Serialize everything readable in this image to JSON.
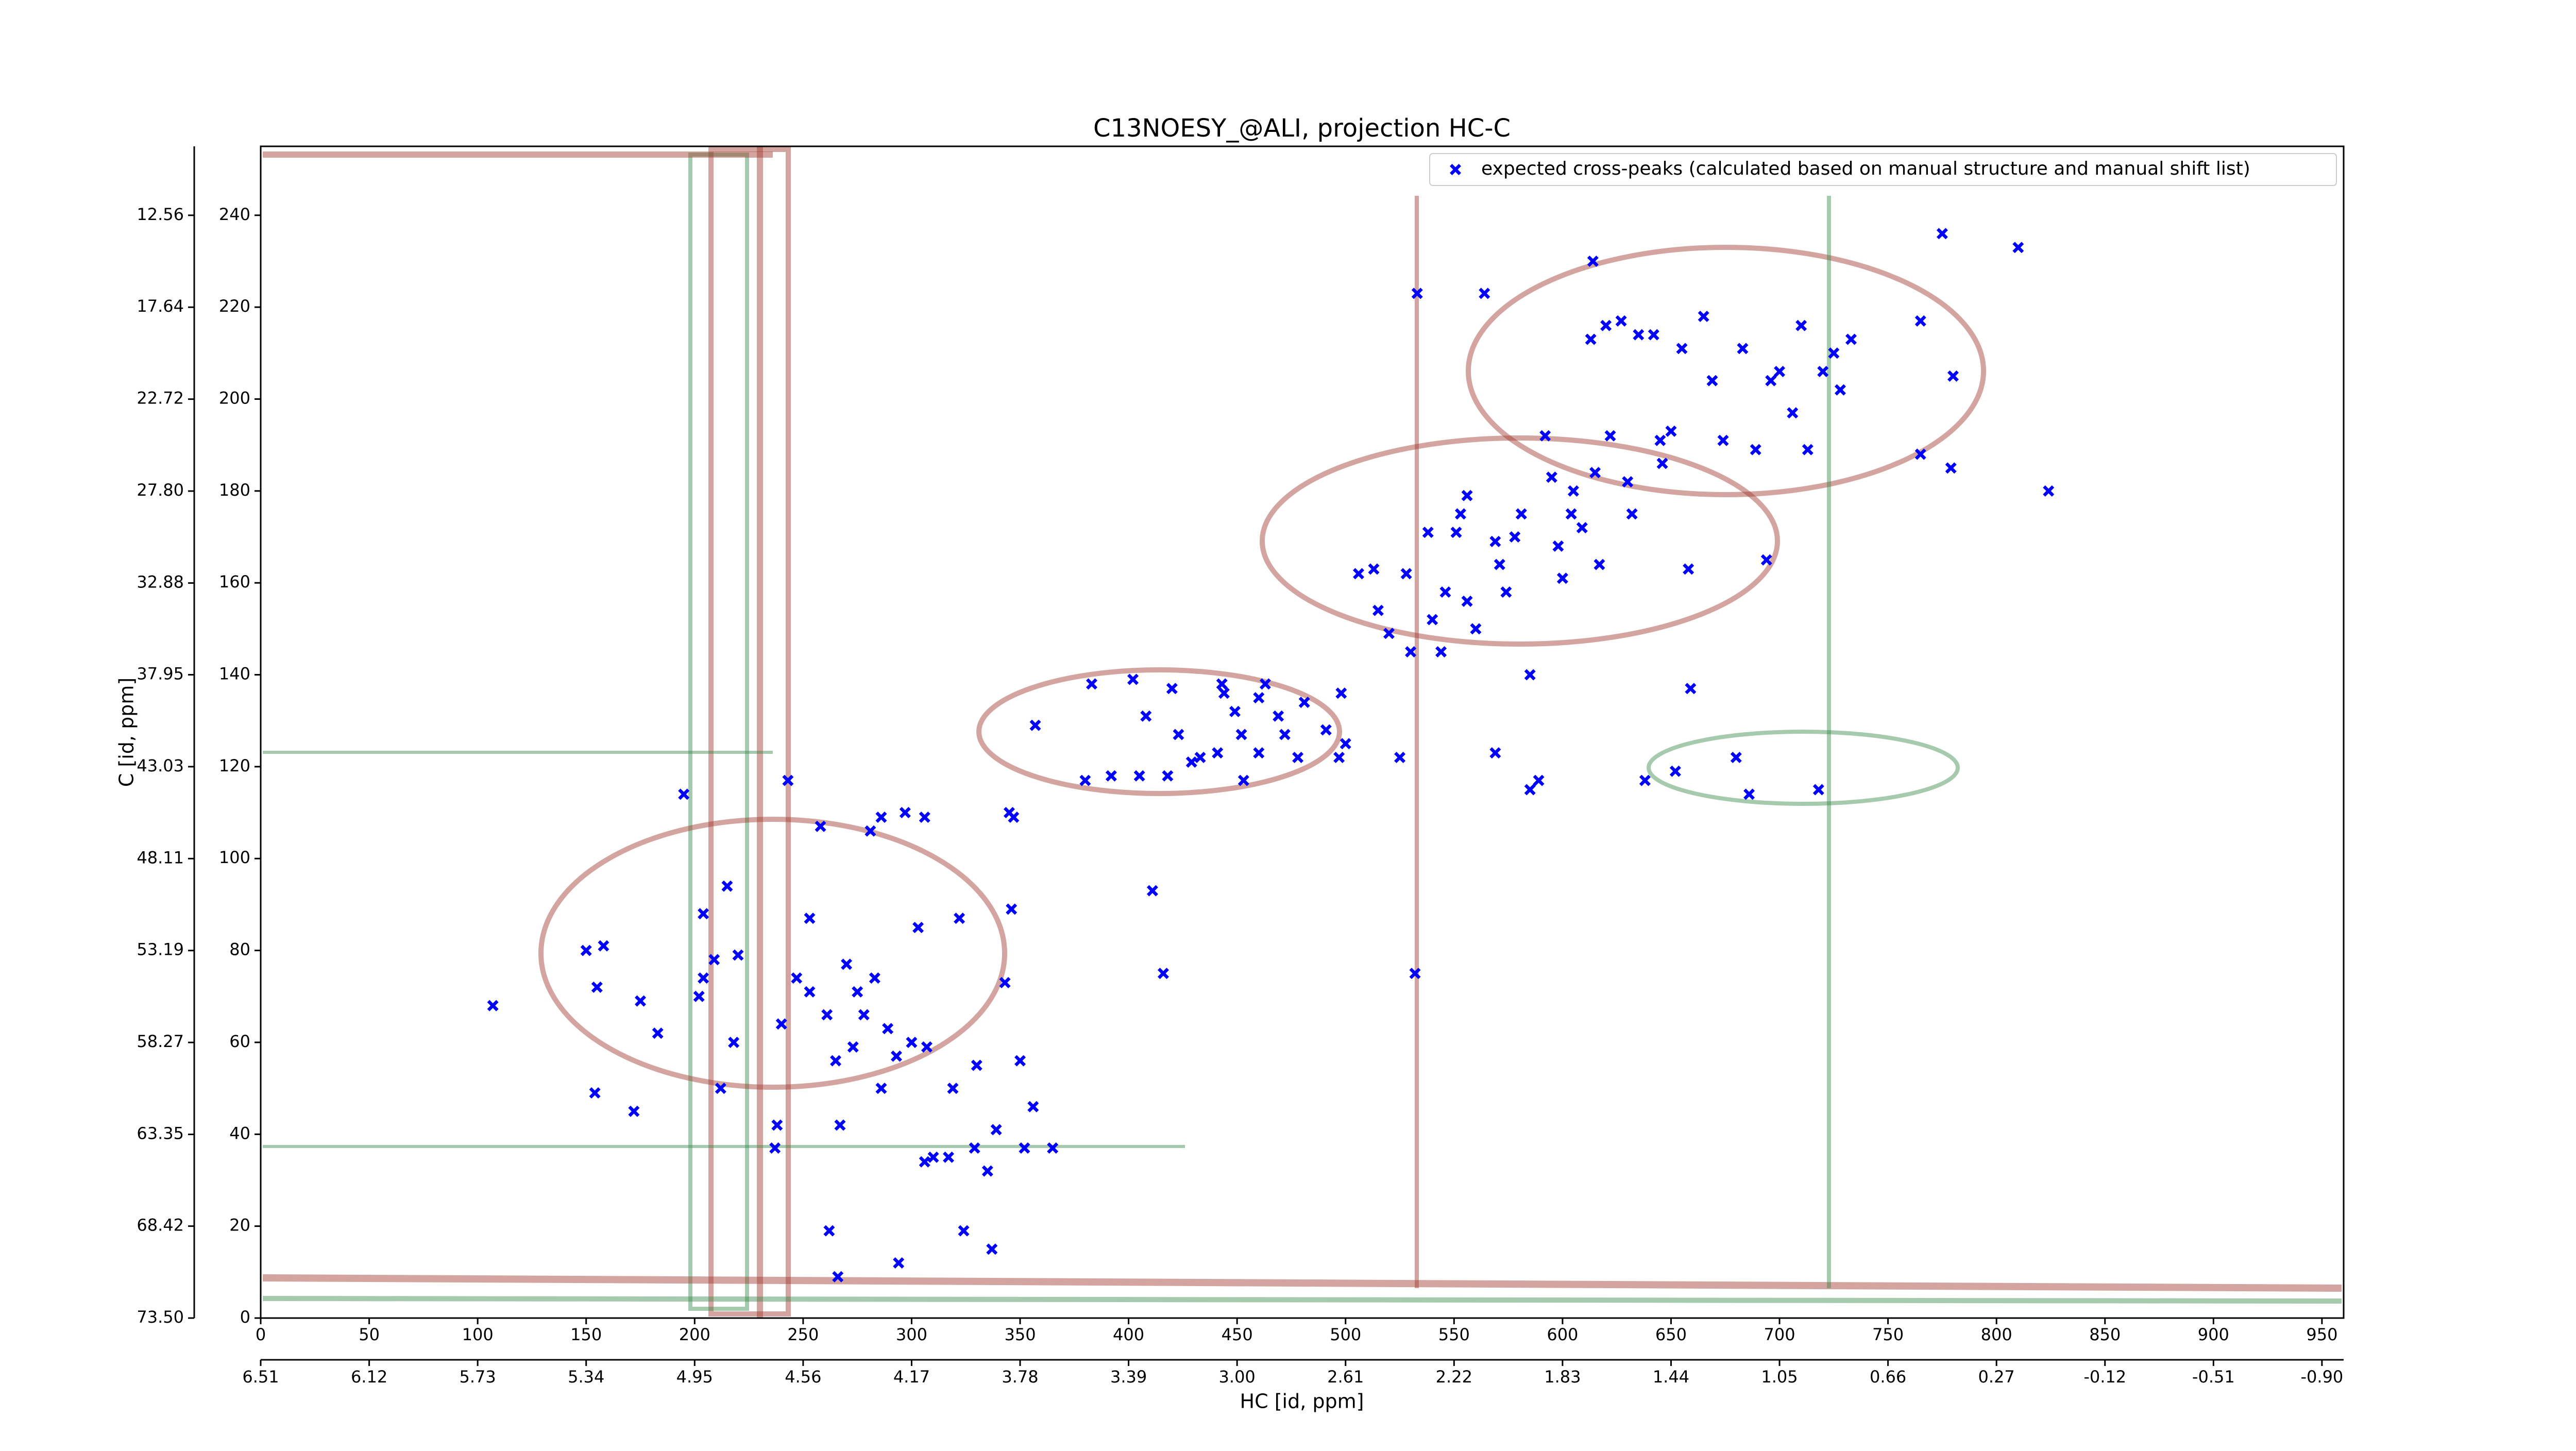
{
  "chart_data": {
    "type": "scatter",
    "title": "C13NOESY_@ALI, projection HC-C",
    "xlabel": "HC [id, ppm]",
    "ylabel": "C [id, ppm]",
    "xlim": [
      0,
      960
    ],
    "ylim": [
      0,
      255
    ],
    "xticks": [
      0,
      50,
      100,
      150,
      200,
      250,
      300,
      350,
      400,
      450,
      500,
      550,
      600,
      650,
      700,
      750,
      800,
      850,
      900,
      950
    ],
    "yticks": [
      0,
      20,
      40,
      60,
      80,
      100,
      120,
      140,
      160,
      180,
      200,
      220,
      240
    ],
    "x2lim": [
      6.51,
      -0.978
    ],
    "x2ticks": [
      6.51,
      6.12,
      5.73,
      5.34,
      4.95,
      4.56,
      4.17,
      3.78,
      3.39,
      {
        "value": 3,
        "label": "3.00"
      },
      2.61,
      2.22,
      1.83,
      1.44,
      1.05,
      0.66,
      0.27,
      -0.12,
      -0.51,
      {
        "value": -0.9,
        "label": "-0.90"
      }
    ],
    "y2lim": [
      73.5,
      8.75
    ],
    "y2ticks": [
      {
        "value": 73.5,
        "label": "73.50"
      },
      68.42,
      63.35,
      58.27,
      53.19,
      48.11,
      43.03,
      37.95,
      32.88,
      {
        "value": 27.8,
        "label": "27.80"
      },
      22.72,
      17.64,
      12.56
    ],
    "legend": "upper right",
    "series": [
      {
        "name": "expected cross-peaks (calculated based on manual structure and manual shift list)",
        "color": "#0000ff",
        "x": [
          107,
          150,
          158,
          155,
          154,
          172,
          175,
          195,
          215,
          204,
          209,
          204,
          220,
          218,
          212,
          183,
          202,
          243,
          240,
          238,
          237,
          247,
          253,
          258,
          253,
          261,
          265,
          267,
          262,
          266,
          270,
          275,
          273,
          278,
          283,
          281,
          286,
          297,
          289,
          293,
          294,
          286,
          300,
          303,
          306,
          306,
          307,
          310,
          317,
          322,
          319,
          324,
          329,
          330,
          335,
          337,
          339,
          345,
          347,
          346,
          343,
          350,
          352,
          356,
          365,
          357,
          380,
          383,
          402,
          392,
          405,
          418,
          408,
          411,
          416,
          420,
          423,
          429,
          433,
          441,
          444,
          443,
          449,
          452,
          453,
          460,
          463,
          460,
          469,
          472,
          478,
          481,
          491,
          497,
          500,
          498,
          506,
          513,
          515,
          520,
          525,
          528,
          532,
          533,
          530,
          538,
          540,
          544,
          546,
          551,
          556,
          556,
          560,
          564,
          569,
          571,
          574,
          578,
          581,
          585,
          585,
          589,
          592,
          595,
          598,
          600,
          605,
          609,
          613,
          614,
          617,
          620,
          622,
          627,
          630,
          632,
          635,
          638,
          642,
          645,
          650,
          652,
          655,
          658,
          659,
          665,
          669,
          674,
          680,
          683,
          686,
          689,
          694,
          696,
          700,
          706,
          710,
          713,
          718,
          720,
          725,
          728,
          733,
          765,
          765,
          775,
          780,
          779,
          810,
          824,
          646,
          615,
          604,
          569,
          553
        ],
        "values": [
          68,
          80,
          81,
          72,
          49,
          45,
          69,
          114,
          94,
          88,
          78,
          74,
          79,
          60,
          50,
          62,
          70,
          117,
          64,
          42,
          37,
          74,
          87,
          107,
          71,
          66,
          56,
          42,
          19,
          9,
          77,
          71,
          59,
          66,
          74,
          106,
          109,
          110,
          63,
          57,
          12,
          50,
          60,
          85,
          109,
          34,
          59,
          35,
          35,
          87,
          50,
          19,
          37,
          55,
          32,
          15,
          41,
          110,
          109,
          89,
          73,
          56,
          37,
          46,
          37,
          129,
          117,
          138,
          139,
          118,
          118,
          118,
          131,
          93,
          75,
          137,
          127,
          121,
          122,
          123,
          136,
          138,
          132,
          127,
          117,
          123,
          138,
          135,
          131,
          127,
          122,
          134,
          128,
          122,
          125,
          136,
          162,
          163,
          154,
          149,
          122,
          162,
          75,
          223,
          145,
          171,
          152,
          145,
          158,
          171,
          179,
          156,
          150,
          223,
          123,
          164,
          158,
          170,
          175,
          140,
          115,
          117,
          192,
          183,
          168,
          161,
          180,
          172,
          213,
          230,
          164,
          216,
          192,
          217,
          182,
          175,
          214,
          117,
          214,
          191,
          193,
          119,
          211,
          163,
          137,
          218,
          204,
          191,
          122,
          211,
          114,
          189,
          165,
          204,
          206,
          197,
          216,
          189,
          115,
          206,
          210,
          202,
          213,
          217,
          188,
          236,
          205,
          185,
          233,
          180,
          186,
          184,
          175,
          169,
          175
        ]
      }
    ]
  }
}
